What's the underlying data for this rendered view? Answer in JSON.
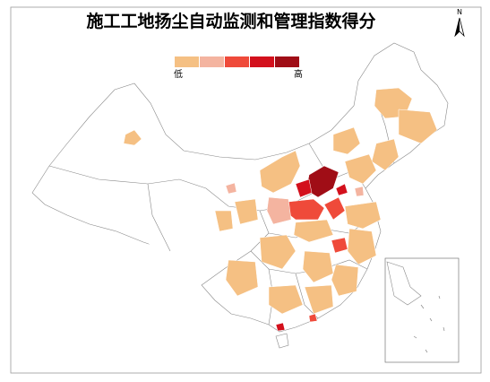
{
  "title": "施工工地扬尘自动监测和管理指数得分",
  "north": "N",
  "legend": {
    "colors": [
      "#f5c083",
      "#f4b4a0",
      "#ef4a3a",
      "#d3101c",
      "#a00d16"
    ],
    "low": "低",
    "high": "高"
  }
}
